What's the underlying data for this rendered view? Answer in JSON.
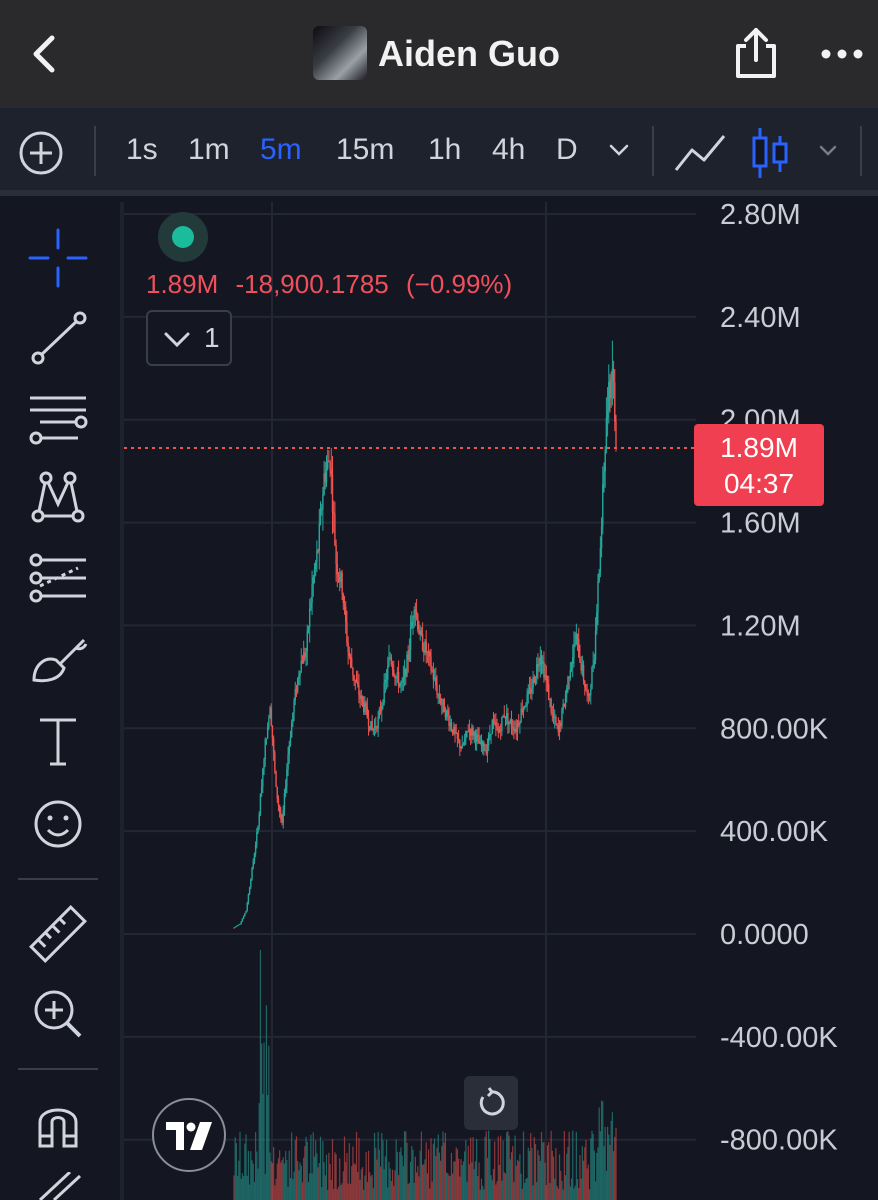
{
  "header": {
    "title": "Aiden Guo",
    "icons": [
      "back-arrow-icon",
      "avatar-image",
      "share-icon",
      "more-icon"
    ]
  },
  "toolbar": {
    "intervals": [
      "1s",
      "1m",
      "5m",
      "15m",
      "1h",
      "4h",
      "D"
    ],
    "active_interval": "5m",
    "chart_styles": [
      "line-chart-icon",
      "candlestick-icon"
    ],
    "accent": "#2962ff"
  },
  "left_tools": [
    "crosshair-icon",
    "trend-line-icon",
    "fib-levels-icon",
    "pattern-icon",
    "projection-icon",
    "brush-icon",
    "text-icon",
    "emoji-icon",
    "ruler-icon",
    "zoom-in-icon",
    "magnet-icon",
    "pencil-icon"
  ],
  "legend": {
    "price": "1.89M",
    "change": "-18,900.1785",
    "change_pct": "(−0.99%)",
    "indicator_count": "1"
  },
  "price_label": {
    "price": "1.89M",
    "countdown": "04:37"
  },
  "chart_data": {
    "type": "candlestick",
    "y_axis_labels": [
      "2.80M",
      "2.40M",
      "2.00M",
      "1.60M",
      "1.20M",
      "800.00K",
      "400.00K",
      "0.0000",
      "-400.00K",
      "-800.00K"
    ],
    "ylim": [
      -1050000,
      2850000
    ],
    "last_price": 1890000,
    "path_points": [
      [
        0,
        25000
      ],
      [
        5,
        40000
      ],
      [
        10,
        90000
      ],
      [
        15,
        250000
      ],
      [
        20,
        420000
      ],
      [
        25,
        700000
      ],
      [
        30,
        900000
      ],
      [
        35,
        560000
      ],
      [
        40,
        420000
      ],
      [
        45,
        700000
      ],
      [
        50,
        900000
      ],
      [
        55,
        1050000
      ],
      [
        60,
        1100000
      ],
      [
        65,
        1350000
      ],
      [
        70,
        1500000
      ],
      [
        75,
        1780000
      ],
      [
        80,
        1850000
      ],
      [
        85,
        1450000
      ],
      [
        90,
        1350000
      ],
      [
        95,
        1100000
      ],
      [
        100,
        1000000
      ],
      [
        105,
        920000
      ],
      [
        110,
        860000
      ],
      [
        115,
        790000
      ],
      [
        120,
        830000
      ],
      [
        125,
        950000
      ],
      [
        130,
        1080000
      ],
      [
        135,
        1000000
      ],
      [
        140,
        960000
      ],
      [
        145,
        1080000
      ],
      [
        150,
        1300000
      ],
      [
        155,
        1150000
      ],
      [
        160,
        1100000
      ],
      [
        165,
        1020000
      ],
      [
        170,
        930000
      ],
      [
        175,
        880000
      ],
      [
        180,
        820000
      ],
      [
        185,
        760000
      ],
      [
        190,
        720000
      ],
      [
        195,
        800000
      ],
      [
        200,
        780000
      ],
      [
        205,
        730000
      ],
      [
        210,
        720000
      ],
      [
        215,
        820000
      ],
      [
        220,
        780000
      ],
      [
        225,
        860000
      ],
      [
        230,
        820000
      ],
      [
        235,
        800000
      ],
      [
        240,
        880000
      ],
      [
        245,
        920000
      ],
      [
        250,
        1000000
      ],
      [
        255,
        1100000
      ],
      [
        260,
        980000
      ],
      [
        265,
        850000
      ],
      [
        270,
        780000
      ],
      [
        275,
        900000
      ],
      [
        280,
        1050000
      ],
      [
        285,
        1150000
      ],
      [
        290,
        1020000
      ],
      [
        295,
        900000
      ],
      [
        300,
        1100000
      ],
      [
        305,
        1500000
      ],
      [
        310,
        2000000
      ],
      [
        315,
        2220000
      ],
      [
        318,
        1890000
      ]
    ],
    "colors": {
      "up": "#26a69a",
      "down": "#ef5350"
    }
  }
}
